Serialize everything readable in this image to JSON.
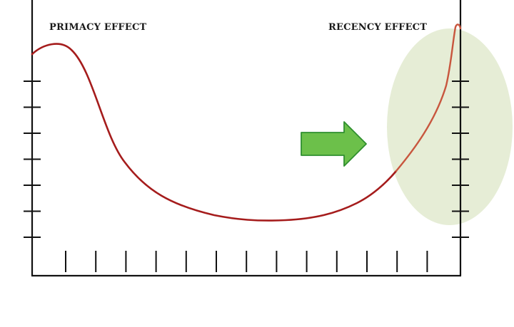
{
  "labels": {
    "primacy": "PRIMACY EFFECT",
    "recency": "RECENCY EFFECT"
  },
  "colors": {
    "curve": "#a51c1c",
    "curve_highlight": "#c8563e",
    "axis": "#111111",
    "highlight_fill": "#e6edd6",
    "arrow_fill": "#6cc04a",
    "arrow_stroke": "#2f8f2f"
  },
  "icons": {
    "arrow": "right-arrow-icon"
  },
  "axes": {
    "left_tick_count": 7,
    "right_tick_count": 7,
    "bottom_tick_count": 13
  }
}
